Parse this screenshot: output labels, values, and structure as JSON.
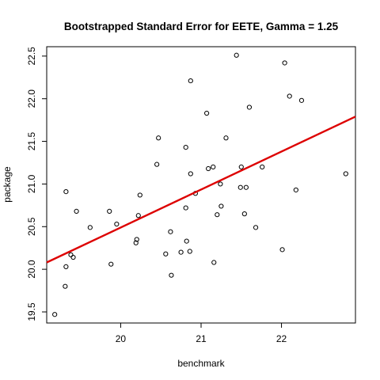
{
  "chart_data": {
    "type": "scatter",
    "title": "Bootstrapped Standard Error for EETE, Gamma =  1.25",
    "xlabel": "benchmark",
    "ylabel": "package",
    "xlim": [
      19.08,
      22.92
    ],
    "ylim": [
      19.37,
      22.61
    ],
    "x_ticks": [
      "20",
      "21",
      "22"
    ],
    "y_ticks": [
      "19.5",
      "20.0",
      "20.5",
      "21.0",
      "21.5",
      "22.0",
      "22.5"
    ],
    "series": [
      {
        "points": [
          [
            19.18,
            19.47
          ],
          [
            19.31,
            19.8
          ],
          [
            19.32,
            20.03
          ],
          [
            19.32,
            20.91
          ],
          [
            19.38,
            20.17
          ],
          [
            19.41,
            20.14
          ],
          [
            19.45,
            20.68
          ],
          [
            19.62,
            20.49
          ],
          [
            19.86,
            20.68
          ],
          [
            19.88,
            20.06
          ],
          [
            19.95,
            20.53
          ],
          [
            20.19,
            20.31
          ],
          [
            20.2,
            20.35
          ],
          [
            20.22,
            20.63
          ],
          [
            20.24,
            20.87
          ],
          [
            20.45,
            21.23
          ],
          [
            20.47,
            21.54
          ],
          [
            20.56,
            20.18
          ],
          [
            20.62,
            20.44
          ],
          [
            20.63,
            19.93
          ],
          [
            20.75,
            20.2
          ],
          [
            20.81,
            20.72
          ],
          [
            20.81,
            21.43
          ],
          [
            20.82,
            20.33
          ],
          [
            20.86,
            20.21
          ],
          [
            20.87,
            22.21
          ],
          [
            20.87,
            21.12
          ],
          [
            20.93,
            20.89
          ],
          [
            21.07,
            21.83
          ],
          [
            21.09,
            21.18
          ],
          [
            21.15,
            21.2
          ],
          [
            21.16,
            20.08
          ],
          [
            21.2,
            20.64
          ],
          [
            21.24,
            21.0
          ],
          [
            21.25,
            20.74
          ],
          [
            21.31,
            21.54
          ],
          [
            21.44,
            22.51
          ],
          [
            21.49,
            20.96
          ],
          [
            21.5,
            21.2
          ],
          [
            21.54,
            20.65
          ],
          [
            21.56,
            20.96
          ],
          [
            21.6,
            21.9
          ],
          [
            21.68,
            20.49
          ],
          [
            21.76,
            21.2
          ],
          [
            22.01,
            20.23
          ],
          [
            22.04,
            22.42
          ],
          [
            22.1,
            22.03
          ],
          [
            22.18,
            20.93
          ],
          [
            22.25,
            21.98
          ],
          [
            22.8,
            21.12
          ]
        ]
      }
    ],
    "fit_line": {
      "x": [
        19.08,
        22.92
      ],
      "y": [
        20.08,
        21.79
      ],
      "color": "#dd0000"
    },
    "point_color": "#000000",
    "grid": false,
    "legend": "none"
  }
}
